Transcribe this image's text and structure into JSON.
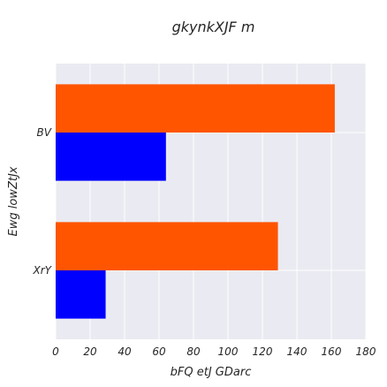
{
  "chart_data": {
    "type": "bar",
    "orientation": "horizontal",
    "title": "gkynkXJF  m",
    "xlabel": "bFQ etJ GDarc",
    "ylabel": "Ewg lowZtJx",
    "categories": [
      "XrY",
      "BV"
    ],
    "series": [
      {
        "values": [
          29,
          64
        ],
        "color": "#0000ff"
      },
      {
        "values": [
          129,
          162
        ],
        "color": "#ff5500"
      }
    ],
    "xlim": [
      0,
      180
    ],
    "xticks": [
      0,
      20,
      40,
      60,
      80,
      100,
      120,
      140,
      160,
      180
    ],
    "grid": true,
    "legend": "none",
    "background": "#eaeaf2"
  }
}
